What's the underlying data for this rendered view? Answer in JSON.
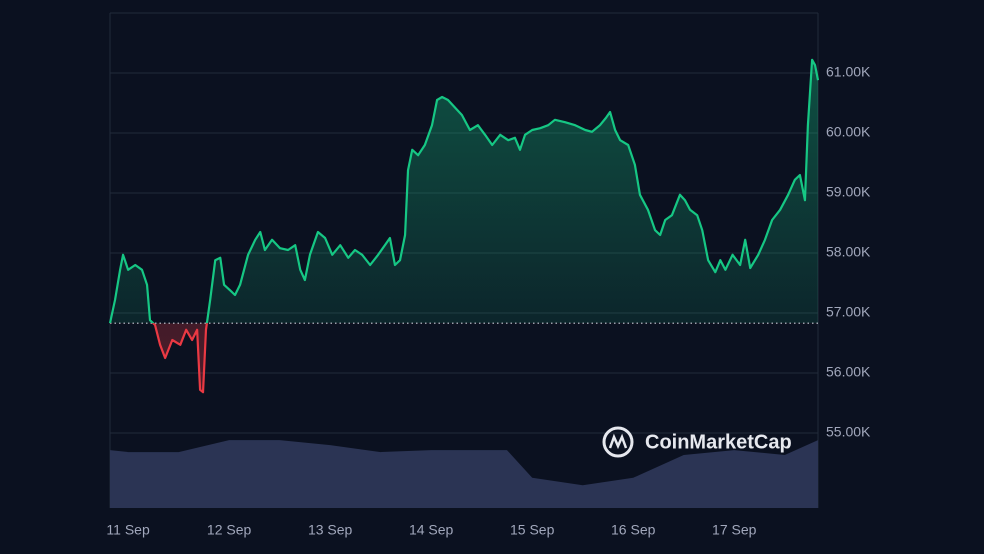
{
  "chart_data": {
    "type": "line",
    "watermark": "CoinMarketCap",
    "baseline": 56.83,
    "grid": true,
    "series": [
      {
        "color": "#16c784",
        "down_color": "#ea3943",
        "x": [
          -4.3,
          -3.1,
          -1.9,
          -1.2,
          0,
          1.7,
          3.3,
          4.5,
          5.2,
          6.4,
          7.6,
          8.8,
          10.5,
          12.4,
          13.8,
          15.2,
          16.4,
          17.1,
          17.8,
          18.5,
          19.5,
          20.7,
          21.9,
          22.8,
          24.2,
          25.4,
          26.6,
          28.5,
          30.2,
          31.4,
          32.5,
          34.2,
          36.1,
          38.0,
          39.7,
          40.9,
          42.0,
          43.2,
          45.1,
          46.8,
          48.5,
          50.4,
          52.3,
          53.9,
          55.6,
          57.5,
          59.4,
          61.0,
          62.2,
          63.4,
          64.6,
          65.8,
          66.5,
          67.5,
          68.9,
          70.5,
          72.2,
          73.4,
          74.6,
          76.0,
          77.7,
          79.3,
          81.2,
          83.1,
          84.8,
          86.5,
          88.4,
          90.3,
          91.9,
          93.1,
          94.3,
          96.0,
          97.9,
          99.8,
          101.4,
          103.8,
          106.2,
          108.6,
          110.2,
          112.1,
          113.5,
          114.5,
          115.7,
          116.9,
          118.8,
          120.4,
          121.6,
          123.5,
          125.2,
          126.4,
          127.6,
          129.2,
          131.1,
          132.3,
          133.5,
          135.2,
          136.4,
          137.8,
          139.5,
          140.7,
          141.9,
          143.6,
          145.4,
          146.6,
          147.8,
          149.7,
          151.3,
          153.0,
          154.9,
          156.8,
          158.4,
          159.6,
          160.8,
          161.5,
          162.5,
          163.2,
          163.9
        ],
        "values": [
          56.83,
          57.22,
          57.72,
          57.97,
          57.72,
          57.8,
          57.72,
          57.47,
          56.88,
          56.8,
          56.47,
          56.25,
          56.55,
          56.47,
          56.72,
          56.55,
          56.72,
          55.72,
          55.68,
          56.72,
          57.22,
          57.88,
          57.92,
          57.47,
          57.38,
          57.3,
          57.47,
          57.97,
          58.22,
          58.35,
          58.05,
          58.22,
          58.08,
          58.05,
          58.13,
          57.72,
          57.55,
          57.97,
          58.35,
          58.25,
          57.97,
          58.13,
          57.92,
          58.05,
          57.97,
          57.8,
          57.97,
          58.13,
          58.25,
          57.8,
          57.88,
          58.3,
          59.38,
          59.72,
          59.63,
          59.8,
          60.13,
          60.55,
          60.6,
          60.55,
          60.42,
          60.3,
          60.05,
          60.13,
          59.97,
          59.8,
          59.97,
          59.88,
          59.92,
          59.72,
          59.97,
          60.05,
          60.08,
          60.13,
          60.22,
          60.18,
          60.13,
          60.05,
          60.02,
          60.13,
          60.25,
          60.35,
          60.05,
          59.88,
          59.8,
          59.47,
          58.97,
          58.72,
          58.38,
          58.3,
          58.55,
          58.63,
          58.97,
          58.88,
          58.72,
          58.63,
          58.38,
          57.88,
          57.68,
          57.88,
          57.72,
          57.97,
          57.8,
          58.22,
          57.75,
          57.97,
          58.22,
          58.55,
          58.72,
          58.97,
          59.22,
          59.3,
          58.88,
          60.13,
          61.22,
          61.13,
          60.88
        ]
      },
      {
        "color": "#2b3454",
        "axis": "y2",
        "x": [
          -4.3,
          0,
          12,
          24,
          36,
          48,
          60,
          72,
          84,
          90,
          96,
          108,
          120,
          132,
          144,
          156,
          163.9
        ],
        "values": [
          11.7,
          11.3,
          11.3,
          13.7,
          13.7,
          12.7,
          11.3,
          11.7,
          11.7,
          11.7,
          6.1,
          4.6,
          6.1,
          10.7,
          11.7,
          10.7,
          13.7
        ]
      }
    ],
    "xlim": [
      -4.3,
      163.9
    ],
    "xticks": [
      {
        "value": 0,
        "label": "11 Sep"
      },
      {
        "value": 24,
        "label": "12 Sep"
      },
      {
        "value": 48,
        "label": "13 Sep"
      },
      {
        "value": 72,
        "label": "14 Sep"
      },
      {
        "value": 96,
        "label": "15 Sep"
      },
      {
        "value": 120,
        "label": "16 Sep"
      },
      {
        "value": 144,
        "label": "17 Sep"
      }
    ],
    "ylim": [
      53.75,
      62
    ],
    "yticks": [
      {
        "value": 55,
        "label": "55.00K"
      },
      {
        "value": 56,
        "label": "56.00K"
      },
      {
        "value": 57,
        "label": "57.00K"
      },
      {
        "value": 58,
        "label": "58.00K"
      },
      {
        "value": 59,
        "label": "59.00K"
      },
      {
        "value": 60,
        "label": "60.00K"
      },
      {
        "value": 61,
        "label": "61.00K"
      }
    ],
    "y2lim": [
      0,
      100
    ]
  }
}
